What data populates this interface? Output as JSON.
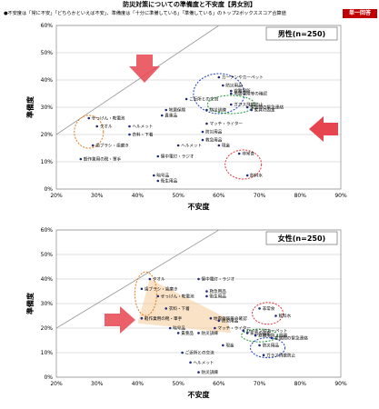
{
  "header": {
    "title": "防災対策についての準備度と不安度【男女別】",
    "subtitle": "●不安度は「常に不安」「どちらかといえば不安」、準備度は「十分に準備している」「準備している」のトップ2ボックススコア合算値",
    "badge": "単一回答"
  },
  "colors": {
    "badge": "#c00000",
    "red": "#e5343a",
    "blue": "#1f3fbf",
    "green": "#1e9a3a",
    "orange": "#e87a1e",
    "arrow": "#e64550",
    "band": "#f6cfa0"
  },
  "chart_data": [
    {
      "type": "scatter",
      "title": "男性(n=250)",
      "xlabel": "不安度",
      "ylabel": "準備度",
      "xlim": [
        20,
        90
      ],
      "ylim": [
        0,
        60
      ],
      "xticks": [
        "20%",
        "30%",
        "40%",
        "50%",
        "60%",
        "70%",
        "80%",
        "90%"
      ],
      "yticks": [
        "0%",
        "10%",
        "20%",
        "30%",
        "40%",
        "50%",
        "60%"
      ],
      "diagonal": true,
      "points": [
        {
          "label": "カーテンやカーペット",
          "x": 60,
          "y": 41
        },
        {
          "label": "防災用品",
          "x": 61,
          "y": 38
        },
        {
          "label": "避難場所",
          "x": 63,
          "y": 36
        },
        {
          "label": "地震保険等の確認",
          "x": 63,
          "y": 35
        },
        {
          "label": "ご近所との交流",
          "x": 52,
          "y": 33
        },
        {
          "label": "ガラス飛散防止",
          "x": 63,
          "y": 31
        },
        {
          "label": "家族間の緊急連絡",
          "x": 67,
          "y": 30
        },
        {
          "label": "家具の固定",
          "x": 68,
          "y": 29
        },
        {
          "label": "防災訓練",
          "x": 57,
          "y": 29
        },
        {
          "label": "マッチ・ライター",
          "x": 57,
          "y": 24
        },
        {
          "label": "防災用品",
          "x": 56,
          "y": 21
        },
        {
          "label": "救急用品",
          "x": 56,
          "y": 18
        },
        {
          "label": "地震保険",
          "x": 47,
          "y": 29
        },
        {
          "label": "貴重品",
          "x": 46,
          "y": 27
        },
        {
          "label": "ぜっけん・乾電池",
          "x": 28,
          "y": 26
        },
        {
          "label": "タオル",
          "x": 30,
          "y": 23
        },
        {
          "label": "ヘルメット",
          "x": 38,
          "y": 23
        },
        {
          "label": "衣料・下着",
          "x": 38,
          "y": 20
        },
        {
          "label": "歯ブラシ・歯磨き",
          "x": 29,
          "y": 16
        },
        {
          "label": "懐中電灯・ラジオ",
          "x": 45,
          "y": 12
        },
        {
          "label": "ヘルメット",
          "x": 50,
          "y": 16
        },
        {
          "label": "軽作業用の靴・軍手",
          "x": 26,
          "y": 11
        },
        {
          "label": "現金",
          "x": 60,
          "y": 16
        },
        {
          "label": "非常食",
          "x": 65,
          "y": 13
        },
        {
          "label": "飲料水",
          "x": 67,
          "y": 5
        },
        {
          "label": "暗号品",
          "x": 44,
          "y": 5
        },
        {
          "label": "衛生用品",
          "x": 45,
          "y": 3
        }
      ],
      "annotations": [
        "ご近所との交流",
        "防災訓練・避難場所"
      ]
    },
    {
      "type": "scatter",
      "title": "女性(n=250)",
      "xlabel": "不安度",
      "ylabel": "準備度",
      "xlim": [
        20,
        90
      ],
      "ylim": [
        0,
        60
      ],
      "xticks": [
        "20%",
        "30%",
        "40%",
        "50%",
        "60%",
        "70%",
        "80%",
        "90%"
      ],
      "yticks": [
        "0%",
        "10%",
        "20%",
        "30%",
        "40%",
        "50%",
        "60%"
      ],
      "diagonal": true,
      "points": [
        {
          "label": "タオル",
          "x": 43,
          "y": 40
        },
        {
          "label": "歯ブラシ・歯磨き",
          "x": 41,
          "y": 36
        },
        {
          "label": "ぜっけん・乾電池",
          "x": 45,
          "y": 33
        },
        {
          "label": "衣料・下着",
          "x": 47,
          "y": 28
        },
        {
          "label": "軽作業用の靴・軍手",
          "x": 41,
          "y": 24
        },
        {
          "label": "懐中電灯・ラジオ",
          "x": 55,
          "y": 40
        },
        {
          "label": "救急用品",
          "x": 57,
          "y": 35
        },
        {
          "label": "衛生用品",
          "x": 57,
          "y": 33
        },
        {
          "label": "非常食",
          "x": 70,
          "y": 28
        },
        {
          "label": "飲料水",
          "x": 74,
          "y": 25
        },
        {
          "label": "地震保険等の確認",
          "x": 58,
          "y": 24
        },
        {
          "label": "マッチ・ライター",
          "x": 59,
          "y": 20
        },
        {
          "label": "防災用品",
          "x": 60,
          "y": 23
        },
        {
          "label": "暗号品",
          "x": 48,
          "y": 20
        },
        {
          "label": "貴重品",
          "x": 50,
          "y": 18
        },
        {
          "label": "防災訓練",
          "x": 55,
          "y": 18
        },
        {
          "label": "現金",
          "x": 61,
          "y": 13
        },
        {
          "label": "カーテンやカーペット",
          "x": 66,
          "y": 19
        },
        {
          "label": "家具の固定",
          "x": 67,
          "y": 18
        },
        {
          "label": "避難場所・経路",
          "x": 69,
          "y": 17
        },
        {
          "label": "家族間の緊急連絡",
          "x": 73,
          "y": 16
        },
        {
          "label": "ガラス飛散防止",
          "x": 71,
          "y": 9
        },
        {
          "label": "防災用品",
          "x": 70,
          "y": 13
        },
        {
          "label": "ご近所との交流",
          "x": 51,
          "y": 10
        },
        {
          "label": "ヘルメット",
          "x": 53,
          "y": 6
        },
        {
          "label": "防災訓練",
          "x": 55,
          "y": 2
        }
      ]
    }
  ]
}
